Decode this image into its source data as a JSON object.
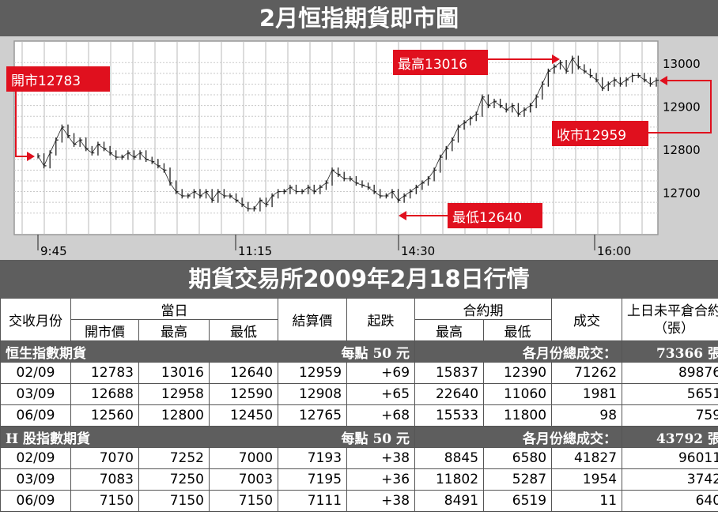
{
  "chart_data": {
    "type": "candlestick",
    "title": "2月恒指期貨即市圖",
    "x_ticks": [
      "9:45",
      "11:15",
      "14:30",
      "16:00"
    ],
    "y_ticks": [
      12700,
      12800,
      12900,
      13000
    ],
    "ylim": [
      12600,
      13050
    ],
    "grid": true,
    "annotations": [
      {
        "name": "open",
        "label": "開市12783",
        "value": 12783
      },
      {
        "name": "high",
        "label": "最高13016",
        "value": 13016
      },
      {
        "name": "low",
        "label": "最低12640",
        "value": 12640
      },
      {
        "name": "close",
        "label": "收市12959",
        "value": 12959
      }
    ],
    "series": [
      {
        "values": [
          12783,
          12760,
          12790,
          12820,
          12850,
          12830,
          12810,
          12820,
          12800,
          12790,
          12810,
          12800,
          12790,
          12780,
          12780,
          12790,
          12780,
          12790,
          12775,
          12770,
          12760,
          12750,
          12720,
          12700,
          12690,
          12690,
          12700,
          12690,
          12700,
          12680,
          12700,
          12690,
          12690,
          12680,
          12670,
          12660,
          12660,
          12680,
          12670,
          12690,
          12700,
          12700,
          12710,
          12700,
          12700,
          12710,
          12700,
          12710,
          12720,
          12750,
          12740,
          12730,
          12730,
          12720,
          12715,
          12710,
          12700,
          12690,
          12690,
          12700,
          12680,
          12690,
          12700,
          12710,
          12720,
          12730,
          12750,
          12780,
          12800,
          12820,
          12850,
          12860,
          12870,
          12880,
          12920,
          12900,
          12910,
          12900,
          12890,
          12900,
          12880,
          12890,
          12900,
          12920,
          12950,
          12980,
          12990,
          13000,
          12980,
          13010,
          12990,
          12980,
          12970,
          12960,
          12940,
          12950,
          12960,
          12950,
          12960,
          12970,
          12970,
          12960,
          12950,
          12959
        ]
      }
    ]
  },
  "table": {
    "title": "期貨交易所2009年2月18日行情",
    "headers": {
      "month": "交收月份",
      "day": "當日",
      "open": "開市價",
      "high": "最高",
      "low": "最低",
      "settle": "結算價",
      "change": "起跌",
      "contract": "合約期",
      "c_high": "最高",
      "c_low": "最低",
      "volume": "成交",
      "oi": "上日未平倉合約（張）"
    },
    "groups": [
      {
        "name": "恒生指數期貨",
        "unit": "每點 50 元",
        "total_label": "各月份總成交：",
        "total": "73366 張",
        "rows": [
          [
            "02/09",
            "12783",
            "13016",
            "12640",
            "12959",
            "+69",
            "15837",
            "12390",
            "71262",
            "89876"
          ],
          [
            "03/09",
            "12688",
            "12958",
            "12590",
            "12908",
            "+65",
            "22640",
            "11060",
            "1981",
            "5651"
          ],
          [
            "06/09",
            "12560",
            "12800",
            "12450",
            "12765",
            "+68",
            "15533",
            "11800",
            "98",
            "759"
          ]
        ]
      },
      {
        "name": "H 股指數期貨",
        "unit": "每點 50 元",
        "total_label": "各月份總成交：",
        "total": "43792 張",
        "rows": [
          [
            "02/09",
            "7070",
            "7252",
            "7000",
            "7193",
            "+38",
            "8845",
            "6580",
            "41827",
            "96011"
          ],
          [
            "03/09",
            "7083",
            "7250",
            "7003",
            "7195",
            "+36",
            "11802",
            "5287",
            "1954",
            "3742"
          ],
          [
            "06/09",
            "7150",
            "7150",
            "7150",
            "7111",
            "+38",
            "8491",
            "6519",
            "11",
            "640"
          ]
        ]
      }
    ]
  },
  "colors": {
    "banner": "#5e5e5e",
    "panel": "#cfcfcf",
    "plot": "#ffffff",
    "callout": "#e0101e",
    "line": "#222222"
  }
}
